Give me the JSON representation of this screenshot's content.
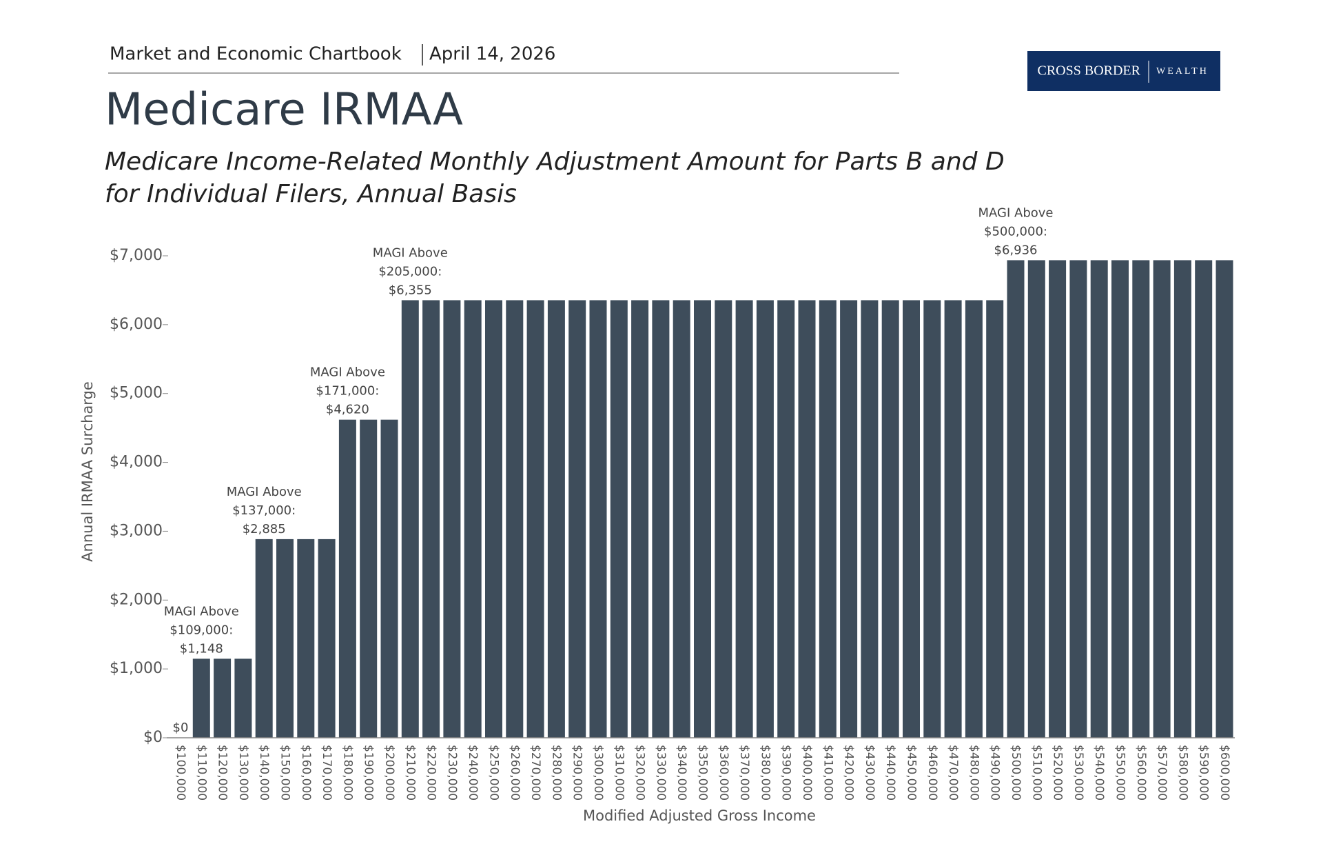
{
  "header": {
    "publication": "Market and Economic Chartbook",
    "date": "April 14, 2026"
  },
  "logo": {
    "name": "CROSS BORDER",
    "suffix": "WEALTH"
  },
  "chart_data": {
    "type": "bar",
    "title": "Medicare IRMAA",
    "subtitle": [
      "Medicare Income-Related Monthly Adjustment Amount for Parts B and D",
      "for Individual Filers, Annual Basis"
    ],
    "x_label": "Modified Adjusted Gross Income",
    "y_label": "Annual IRMAA Surcharge",
    "color": "#3e4d5b",
    "categories": [
      "$100,000",
      "$110,000",
      "$120,000",
      "$130,000",
      "$140,000",
      "$150,000",
      "$160,000",
      "$170,000",
      "$180,000",
      "$190,000",
      "$200,000",
      "$210,000",
      "$220,000",
      "$230,000",
      "$240,000",
      "$250,000",
      "$260,000",
      "$270,000",
      "$280,000",
      "$290,000",
      "$300,000",
      "$310,000",
      "$320,000",
      "$330,000",
      "$340,000",
      "$350,000",
      "$360,000",
      "$370,000",
      "$380,000",
      "$390,000",
      "$400,000",
      "$410,000",
      "$420,000",
      "$430,000",
      "$440,000",
      "$450,000",
      "$460,000",
      "$470,000",
      "$480,000",
      "$490,000",
      "$500,000",
      "$510,000",
      "$520,000",
      "$530,000",
      "$540,000",
      "$550,000",
      "$560,000",
      "$570,000",
      "$580,000",
      "$590,000",
      "$600,000"
    ],
    "values": [
      0,
      1148,
      1148,
      1148,
      2885,
      2885,
      2885,
      2885,
      4620,
      4620,
      4620,
      6355,
      6355,
      6355,
      6355,
      6355,
      6355,
      6355,
      6355,
      6355,
      6355,
      6355,
      6355,
      6355,
      6355,
      6355,
      6355,
      6355,
      6355,
      6355,
      6355,
      6355,
      6355,
      6355,
      6355,
      6355,
      6355,
      6355,
      6355,
      6355,
      6936,
      6936,
      6936,
      6936,
      6936,
      6936,
      6936,
      6936,
      6936,
      6936,
      6936
    ],
    "annotations": [
      {
        "category": "$100,000",
        "lines": [
          "$0"
        ]
      },
      {
        "category": "$110,000",
        "lines": [
          "MAGI Above",
          "$109,000:",
          "$1,148"
        ]
      },
      {
        "category": "$140,000",
        "lines": [
          "MAGI Above",
          "$137,000:",
          "$2,885"
        ]
      },
      {
        "category": "$180,000",
        "lines": [
          "MAGI Above",
          "$171,000:",
          "$4,620"
        ]
      },
      {
        "category": "$210,000",
        "lines": [
          "MAGI Above",
          "$205,000:",
          "$6,355"
        ]
      },
      {
        "category": "$500,000",
        "lines": [
          "MAGI Above",
          "$500,000:",
          "$6,936"
        ]
      }
    ],
    "ylim": [
      0,
      7000
    ],
    "yticks": [
      {
        "value": 0,
        "label": "$0"
      },
      {
        "value": 1000,
        "label": "$1,000"
      },
      {
        "value": 2000,
        "label": "$2,000"
      },
      {
        "value": 3000,
        "label": "$3,000"
      },
      {
        "value": 4000,
        "label": "$4,000"
      },
      {
        "value": 5000,
        "label": "$5,000"
      },
      {
        "value": 6000,
        "label": "$6,000"
      },
      {
        "value": 7000,
        "label": "$7,000"
      }
    ],
    "grid": false
  }
}
